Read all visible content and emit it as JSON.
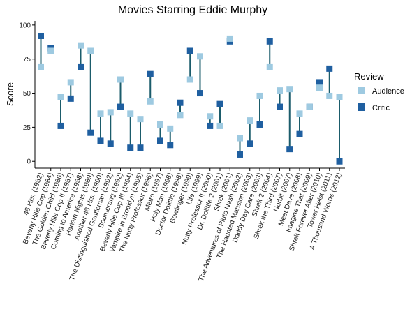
{
  "chart_data": {
    "type": "dumbbell",
    "title": "Movies Starring Eddie Murphy",
    "xlabel": "",
    "ylabel": "Score",
    "ylim": [
      -5,
      103
    ],
    "yticks": [
      0,
      25,
      50,
      75,
      100
    ],
    "legend": {
      "title": "Review",
      "position": "right"
    },
    "series": [
      {
        "name": "Audience",
        "color": "#9ecae1"
      },
      {
        "name": "Critic",
        "color": "#1f5fa0"
      }
    ],
    "connector_color": "#1b5c6b",
    "categories": [
      "48 Hrs. (1982)",
      "Beverly Hills Cop (1984)",
      "The Golden Child (1986)",
      "Beverly Hills Cop II (1987)",
      "Coming to America (1988)",
      "Harlem Nights (1989)",
      "Another 48 Hrs. (1990)",
      "The Distinguished Gentleman (1992)",
      "Boomerang (1992)",
      "Beverly Hills Cop III (1994)",
      "Vampire in Brooklyn (1995)",
      "The Nutty Professor (1996)",
      "Metro (1997)",
      "Holy Man (1998)",
      "Doctor Dolittle (1998)",
      "Bowfinger (1999)",
      "Life (1999)",
      "Nutty Professor II (2000)",
      "Dr. Dolittle 2 (2001)",
      "Shrek (2001)",
      "The Adventures of Pluto Nash (2002)",
      "The Haunted Mansion (2003)",
      "Daddy Day Care (2003)",
      "Shrek 2 (2004)",
      "Shrek the Third (2007)",
      "Norbit (2007)",
      "Meet Dave (2008)",
      "Imagine That (2009)",
      "Shrek Forever After (2010)",
      "Tower Heist (2011)",
      "A Thousand Words (2012)"
    ],
    "audience": [
      69,
      81,
      47,
      58,
      85,
      81,
      35,
      36,
      60,
      35,
      31,
      44,
      27,
      24,
      34,
      60,
      77,
      33,
      26,
      90,
      17,
      30,
      48,
      69,
      52,
      53,
      35,
      40,
      54,
      48,
      47
    ],
    "critic": [
      92,
      83,
      26,
      46,
      69,
      21,
      15,
      13,
      40,
      10,
      10,
      64,
      15,
      12,
      43,
      81,
      50,
      26,
      42,
      88,
      5,
      13,
      27,
      88,
      40,
      9,
      20,
      40,
      58,
      68,
      0
    ]
  }
}
